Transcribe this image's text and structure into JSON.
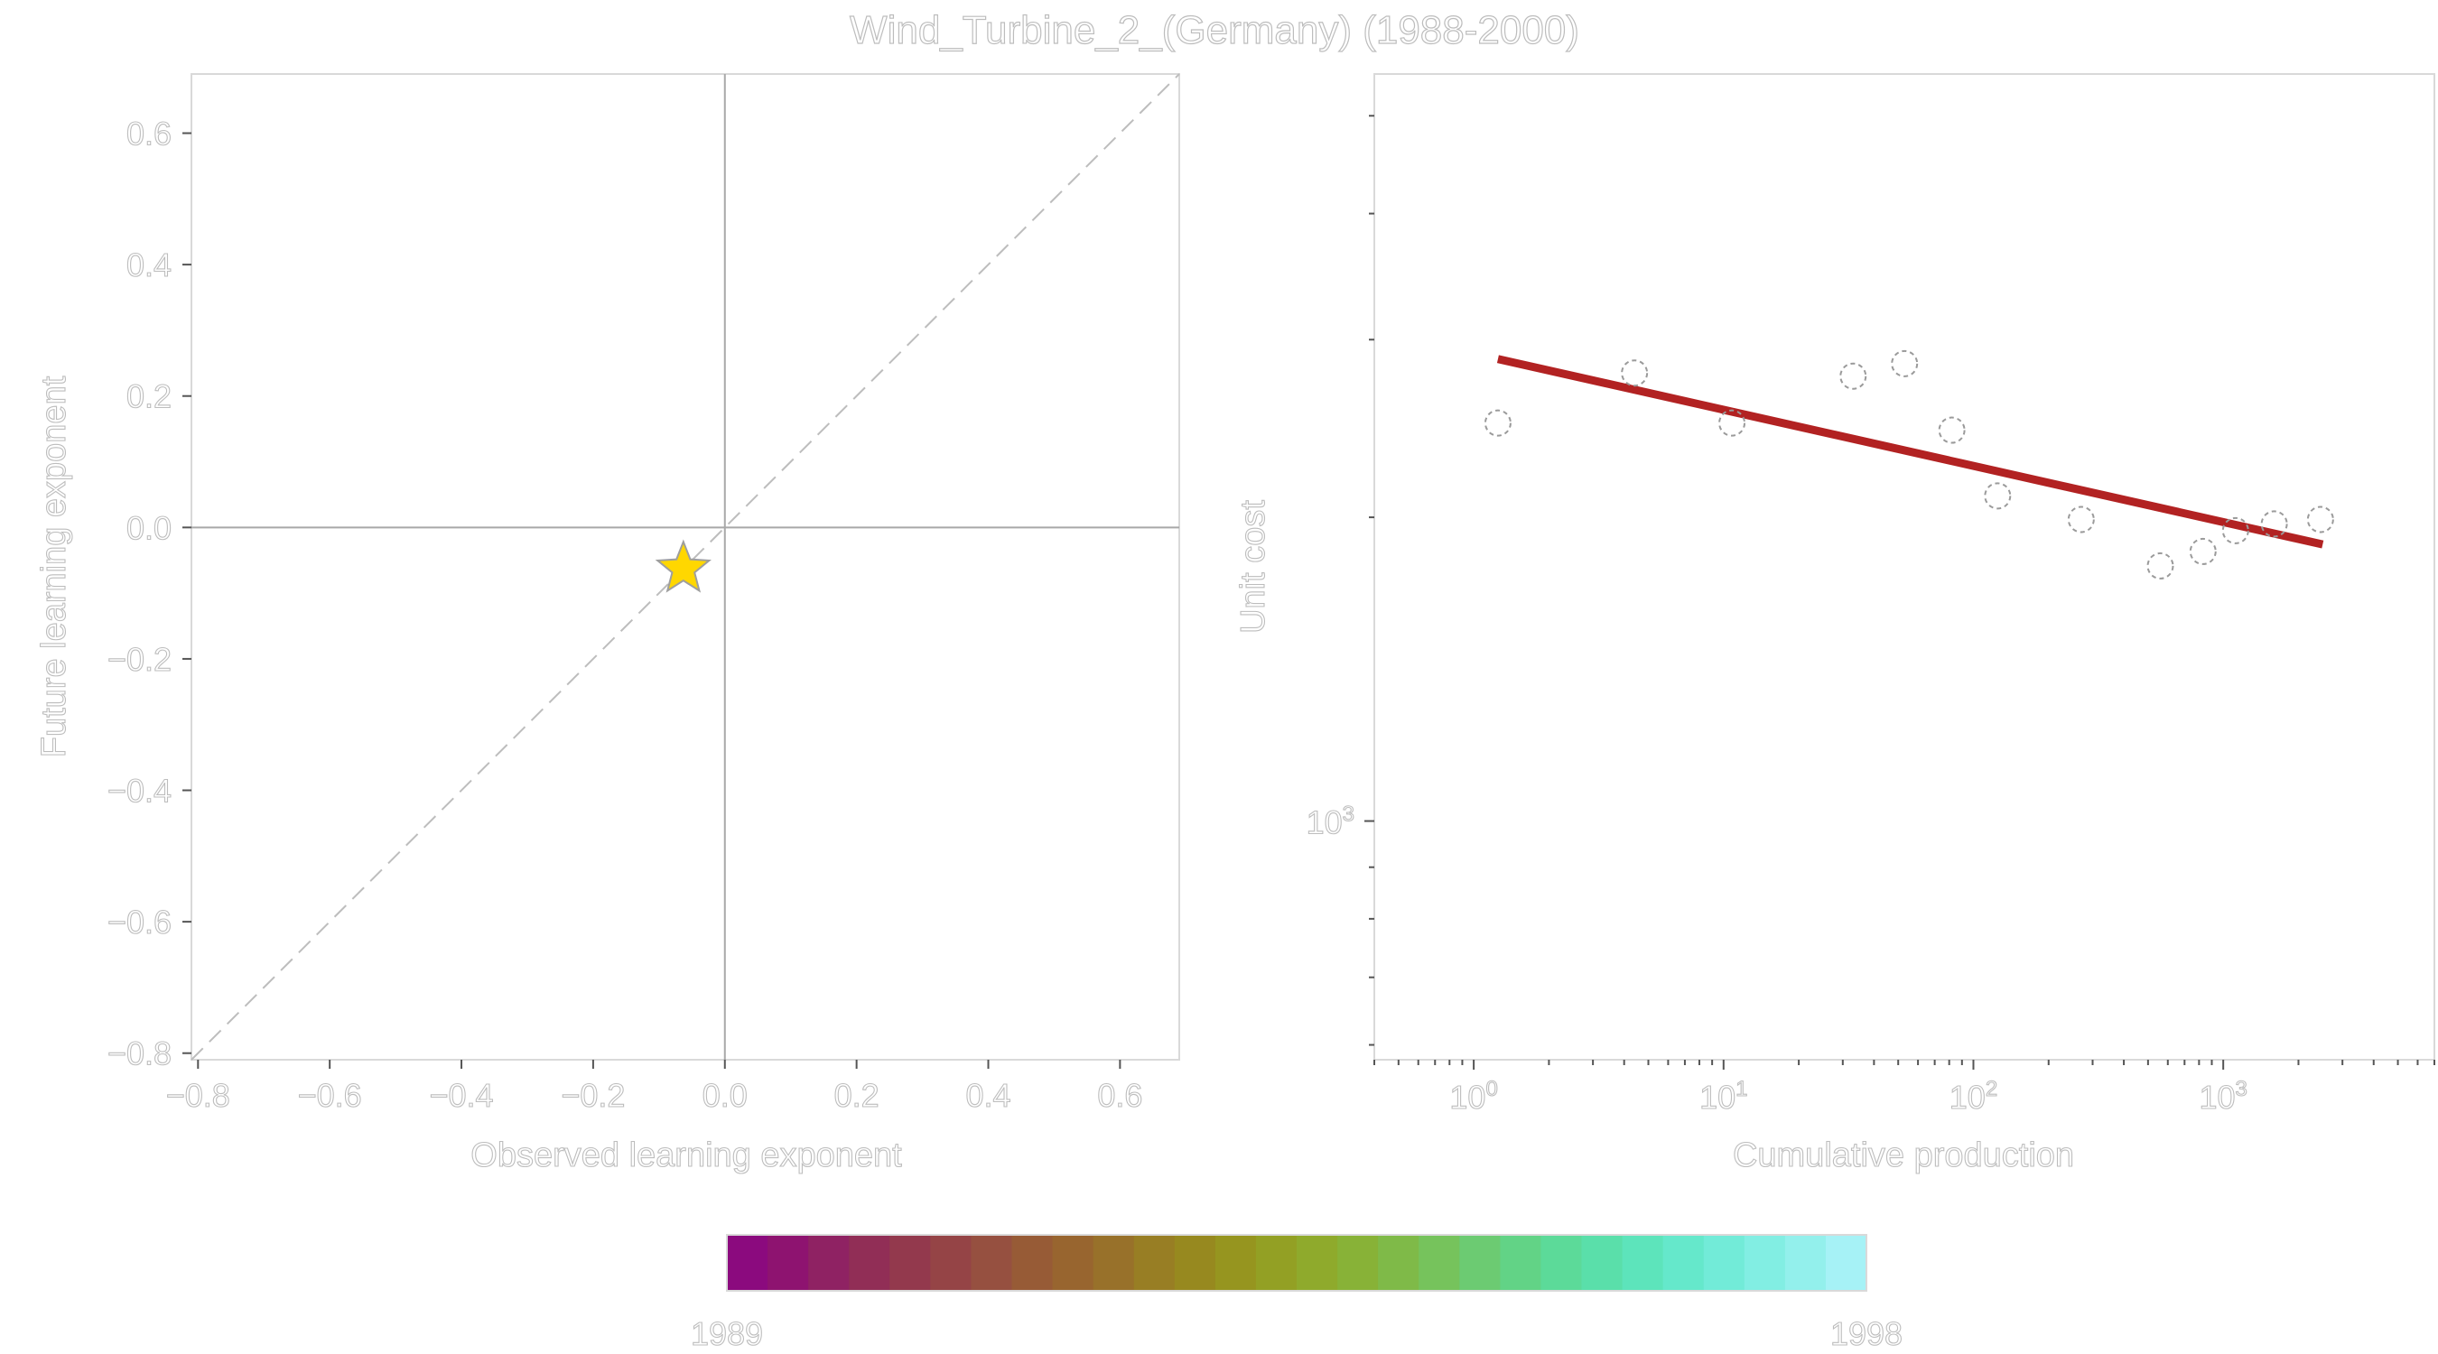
{
  "title": "Wind_Turbine_2_(Germany) (1988-2000)",
  "chart_data": [
    {
      "type": "scatter",
      "name": "learning-exponent-comparison",
      "xlabel": "Observed learning exponent",
      "ylabel": "Future learning exponent",
      "xlim": [
        -0.81,
        0.69
      ],
      "ylim": [
        -0.81,
        0.69
      ],
      "xticks": [
        -0.8,
        -0.6,
        -0.4,
        -0.2,
        0.0,
        0.2,
        0.4,
        0.6
      ],
      "yticks": [
        -0.8,
        -0.6,
        -0.4,
        -0.2,
        0.0,
        0.2,
        0.4,
        0.6
      ],
      "xtick_labels": [
        "−0.8",
        "−0.6",
        "−0.4",
        "−0.2",
        "0.0",
        "0.2",
        "0.4",
        "0.6"
      ],
      "ytick_labels": [
        "−0.8",
        "−0.6",
        "−0.4",
        "−0.2",
        "0.0",
        "0.2",
        "0.4",
        "0.6"
      ],
      "reference_line": "y = x (dashed)",
      "zero_lines": true,
      "grid": false,
      "marker": "star",
      "marker_color": "#FFD700",
      "points": [
        {
          "x": -0.063,
          "y": -0.063
        }
      ]
    },
    {
      "type": "scatter",
      "name": "experience-curve",
      "xlabel": "Cumulative production",
      "ylabel": "Unit cost",
      "x_scale": "log",
      "y_scale": "log",
      "xlim": [
        0.4,
        7000
      ],
      "ylim": [
        580,
        5500
      ],
      "x_major_ticks": [
        1,
        10,
        100,
        1000
      ],
      "x_major_tick_base": "10",
      "x_major_tick_exponents": [
        "0",
        "1",
        "2",
        "3"
      ],
      "y_major_ticks": [
        1000
      ],
      "y_major_tick_base": "10",
      "y_major_tick_exponents": [
        "3"
      ],
      "grid": false,
      "points": [
        {
          "x": 1.25,
          "y": 2480
        },
        {
          "x": 4.4,
          "y": 2780
        },
        {
          "x": 10.8,
          "y": 2480
        },
        {
          "x": 33,
          "y": 2760
        },
        {
          "x": 53,
          "y": 2840
        },
        {
          "x": 82,
          "y": 2440
        },
        {
          "x": 125,
          "y": 2100
        },
        {
          "x": 270,
          "y": 1990
        },
        {
          "x": 560,
          "y": 1790
        },
        {
          "x": 830,
          "y": 1850
        },
        {
          "x": 1120,
          "y": 1940
        },
        {
          "x": 1600,
          "y": 1970
        },
        {
          "x": 2450,
          "y": 1990
        }
      ],
      "point_style": "hollow circle, dashed grey edge",
      "fit_line": {
        "x": [
          1.25,
          2500
        ],
        "y": [
          2870,
          1880
        ],
        "color": "#B22222"
      }
    }
  ],
  "colorbar": {
    "min_label": "1989",
    "max_label": "1998",
    "colors": [
      "#8B0A7E",
      "#8E1370",
      "#8F2263",
      "#912E56",
      "#93394D",
      "#954446",
      "#965040",
      "#975B36",
      "#98652F",
      "#98712A",
      "#987E24",
      "#97891F",
      "#96951F",
      "#93A024",
      "#8FAA2C",
      "#88B237",
      "#7FBA48",
      "#76C35C",
      "#6CCB72",
      "#62D386",
      "#5CDA99",
      "#5ADFAA",
      "#5DE4BB",
      "#65E8CB",
      "#72EBD8",
      "#82EEE3",
      "#93F0EC",
      "#A6F2F6"
    ]
  }
}
